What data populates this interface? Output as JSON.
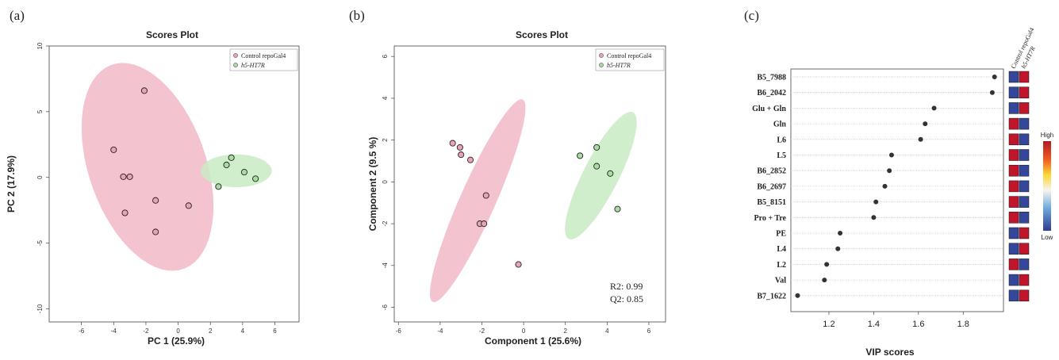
{
  "panels": {
    "a": {
      "letter": "(a)",
      "title": "Scores Plot",
      "xlabel": "PC 1 (25.9%)",
      "ylabel": "PC 2 (17.9%)",
      "legend": [
        "Control repoGal4",
        "h5-HT7R"
      ]
    },
    "b": {
      "letter": "(b)",
      "title": "Scores Plot",
      "xlabel": "Component 1 (25.6%)",
      "ylabel": "Component 2 (9.5 %)",
      "legend": [
        "Control repoGal4",
        "h5-HT7R"
      ],
      "r2": "R2: 0.99",
      "q2": "Q2: 0.85"
    },
    "c": {
      "letter": "(c)",
      "xlabel": "VIP scores",
      "col_heads": [
        "Control repoGal4",
        "h5-HT7R"
      ],
      "colorbar_high": "High",
      "colorbar_low": "Low"
    }
  },
  "colors": {
    "control": "#e8a3b6",
    "control_ellipse": "#f2b9c8",
    "treatment": "#a8dca0",
    "treatment_ellipse": "#c9ebc3",
    "heat_high": "#c0152b",
    "heat_low": "#34479a",
    "dot": "#333333"
  },
  "chart_data": [
    {
      "id": "pca",
      "type": "scatter",
      "title": "Scores Plot",
      "xlabel": "PC 1 (25.9%)",
      "ylabel": "PC 2 (17.9%)",
      "xlim": [
        -8,
        7.5
      ],
      "ylim": [
        -11,
        10
      ],
      "xticks": [
        -6,
        -4,
        -2,
        0,
        2,
        4,
        6
      ],
      "yticks": [
        -10,
        -5,
        0,
        5,
        10
      ],
      "legend_position": "top-right",
      "series": [
        {
          "name": "Control repoGal4",
          "points": [
            [
              -2.1,
              6.6
            ],
            [
              -4.0,
              2.1
            ],
            [
              -3.4,
              0.05
            ],
            [
              -3.0,
              0.05
            ],
            [
              -1.4,
              -1.75
            ],
            [
              0.65,
              -2.15
            ],
            [
              -3.3,
              -2.7
            ],
            [
              -1.4,
              -4.15
            ]
          ],
          "ellipse": {
            "cx": -1.9,
            "cy": 0.8,
            "rx": 3.7,
            "ry": 8.1,
            "angle": 14
          }
        },
        {
          "name": "h5-HT7R",
          "points": [
            [
              3.3,
              1.5
            ],
            [
              3.0,
              0.95
            ],
            [
              4.1,
              0.4
            ],
            [
              4.8,
              -0.1
            ],
            [
              2.5,
              -0.7
            ]
          ],
          "ellipse": {
            "cx": 3.6,
            "cy": 0.5,
            "rx": 2.2,
            "ry": 1.25,
            "angle": 0
          }
        }
      ]
    },
    {
      "id": "plsda",
      "type": "scatter",
      "title": "Scores Plot",
      "xlabel": "Component 1 (25.6%)",
      "ylabel": "Component 2 (9.5 %)",
      "xlim": [
        -6.2,
        6.8
      ],
      "ylim": [
        -6.7,
        6.5
      ],
      "xticks": [
        -6,
        -4,
        -2,
        0,
        2,
        4,
        6
      ],
      "yticks": [
        -6,
        -4,
        -2,
        0,
        2,
        4,
        6
      ],
      "legend_position": "top-right",
      "annotations": [
        "R2: 0.99",
        "Q2: 0.85"
      ],
      "series": [
        {
          "name": "Control repoGal4",
          "points": [
            [
              -3.4,
              1.85
            ],
            [
              -3.05,
              1.65
            ],
            [
              -3.0,
              1.3
            ],
            [
              -2.55,
              1.05
            ],
            [
              -1.8,
              -0.65
            ],
            [
              -2.1,
              -2.0
            ],
            [
              -1.9,
              -2.0
            ],
            [
              -0.25,
              -3.95
            ]
          ],
          "ellipse": {
            "cx": -2.2,
            "cy": -0.9,
            "rx": 0.85,
            "ry": 5.3,
            "angle": -24
          }
        },
        {
          "name": "h5-HT7R",
          "points": [
            [
              2.7,
              1.25
            ],
            [
              3.5,
              1.65
            ],
            [
              3.5,
              0.75
            ],
            [
              4.15,
              0.4
            ],
            [
              4.5,
              -1.3
            ]
          ],
          "ellipse": {
            "cx": 3.7,
            "cy": 0.3,
            "rx": 0.85,
            "ry": 3.4,
            "angle": -27
          }
        }
      ]
    },
    {
      "id": "vip",
      "type": "scatter",
      "xlabel": "VIP scores",
      "xlim": [
        1.03,
        1.98
      ],
      "xticks": [
        1.2,
        1.4,
        1.6,
        1.8
      ],
      "categories": [
        "B5_7988",
        "B6_2042",
        "Glu + Gln",
        "Gln",
        "L6",
        "L5",
        "B6_2852",
        "B6_2697",
        "B5_8151",
        "Pro + Tre",
        "PE",
        "L4",
        "L2",
        "Val",
        "B7_1622"
      ],
      "values": [
        1.94,
        1.93,
        1.67,
        1.63,
        1.61,
        1.48,
        1.47,
        1.45,
        1.41,
        1.4,
        1.25,
        1.24,
        1.19,
        1.18,
        1.06
      ],
      "heatmap": {
        "columns": [
          "Control repoGal4",
          "h5-HT7R"
        ],
        "levels": [
          [
            "low",
            "high"
          ],
          [
            "low",
            "high"
          ],
          [
            "low",
            "high"
          ],
          [
            "high",
            "low"
          ],
          [
            "high",
            "low"
          ],
          [
            "high",
            "low"
          ],
          [
            "high",
            "low"
          ],
          [
            "high",
            "low"
          ],
          [
            "high",
            "low"
          ],
          [
            "high",
            "low"
          ],
          [
            "low",
            "high"
          ],
          [
            "low",
            "high"
          ],
          [
            "high",
            "low"
          ],
          [
            "low",
            "high"
          ],
          [
            "low",
            "high"
          ]
        ]
      },
      "colorbar": [
        "High",
        "Low"
      ]
    }
  ]
}
